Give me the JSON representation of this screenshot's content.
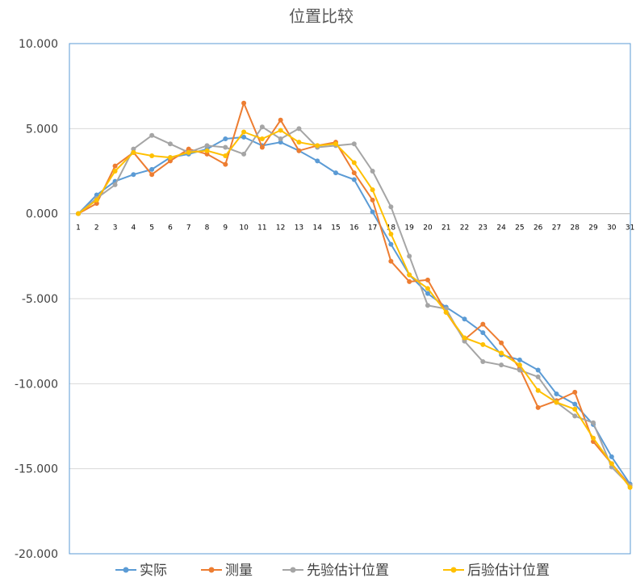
{
  "chart_data": {
    "type": "line",
    "title": "位置比较",
    "xlabel": "",
    "ylabel": "",
    "ylim": [
      -20,
      10
    ],
    "yticks": [
      "10.000",
      "5.000",
      "0.000",
      "-5.000",
      "-10.000",
      "-15.000",
      "-20.000"
    ],
    "categories": [
      "1",
      "2",
      "3",
      "4",
      "5",
      "6",
      "7",
      "8",
      "9",
      "10",
      "11",
      "12",
      "13",
      "14",
      "15",
      "16",
      "17",
      "18",
      "19",
      "20",
      "21",
      "22",
      "23",
      "24",
      "25",
      "26",
      "27",
      "28",
      "29",
      "30",
      "31"
    ],
    "grid": true,
    "legend": "bottom",
    "series": [
      {
        "name": "实际",
        "color": "#5B9BD5",
        "values": [
          0.0,
          1.1,
          1.9,
          2.3,
          2.6,
          3.3,
          3.5,
          3.8,
          4.4,
          4.5,
          4.0,
          4.2,
          3.7,
          3.1,
          2.4,
          2.0,
          0.1,
          -1.8,
          -3.6,
          -4.7,
          -5.5,
          -6.2,
          -7.0,
          -8.3,
          -8.6,
          -9.2,
          -10.6,
          -11.2,
          -12.4,
          -14.3,
          -15.9
        ]
      },
      {
        "name": "测量",
        "color": "#ED7D31",
        "values": [
          0.0,
          0.6,
          2.8,
          3.6,
          2.3,
          3.1,
          3.8,
          3.5,
          2.9,
          6.5,
          3.9,
          5.5,
          3.7,
          4.0,
          4.2,
          2.4,
          0.8,
          -2.8,
          -4.0,
          -3.9,
          -5.8,
          -7.4,
          -6.5,
          -7.6,
          -9.1,
          -11.4,
          -11.0,
          -10.5,
          -13.4,
          -14.7,
          -16.0
        ]
      },
      {
        "name": "先验估计位置",
        "color": "#A5A5A5",
        "values": [
          0.0,
          0.9,
          1.7,
          3.8,
          4.6,
          4.1,
          3.6,
          4.0,
          3.9,
          3.5,
          5.1,
          4.4,
          5.0,
          3.9,
          4.0,
          4.1,
          2.5,
          0.4,
          -2.5,
          -5.4,
          -5.6,
          -7.5,
          -8.7,
          -8.9,
          -9.2,
          -9.6,
          -11.1,
          -11.9,
          -12.3,
          -14.9,
          -16.0
        ]
      },
      {
        "name": "后验估计位置",
        "color": "#FFC000",
        "values": [
          0.0,
          0.8,
          2.5,
          3.6,
          3.4,
          3.3,
          3.6,
          3.7,
          3.4,
          4.8,
          4.4,
          4.9,
          4.2,
          4.0,
          4.1,
          3.0,
          1.4,
          -1.2,
          -3.6,
          -4.4,
          -5.8,
          -7.3,
          -7.7,
          -8.2,
          -8.9,
          -10.4,
          -11.1,
          -11.5,
          -13.2,
          -14.7,
          -16.1
        ]
      }
    ]
  }
}
